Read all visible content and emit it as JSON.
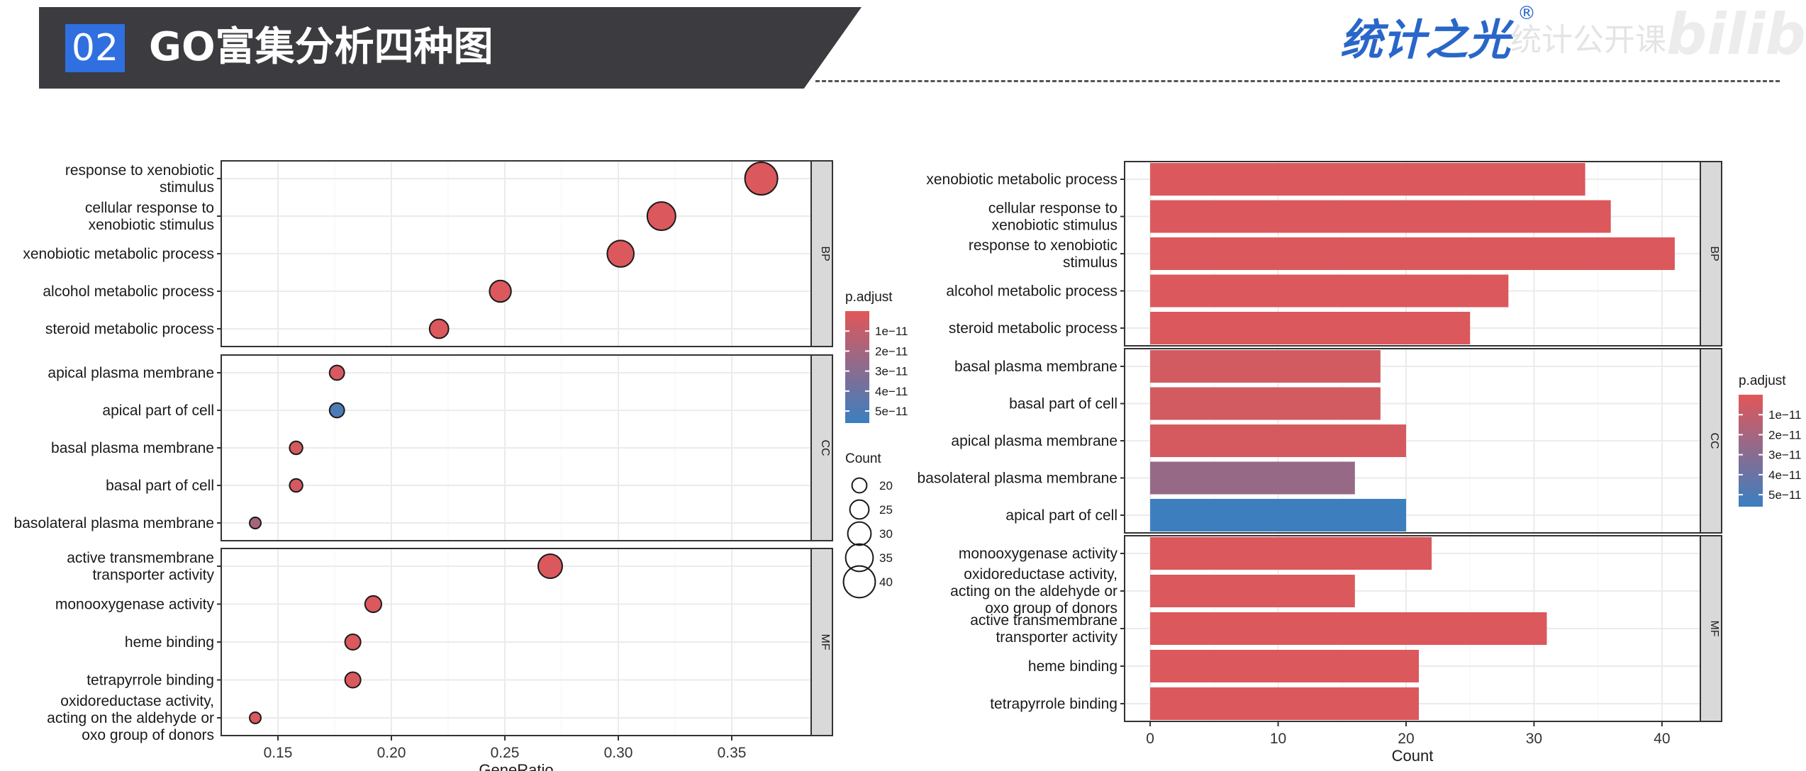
{
  "header": {
    "number": "02",
    "title": "GO富集分析四种图"
  },
  "brand": {
    "logo_text": "统计之光",
    "registered_mark": "®",
    "watermark_text": "统计公开课",
    "watermark_logo": "bilibili"
  },
  "colors": {
    "high": "#e15759",
    "low": "#3a7fc1",
    "header_bg": "#3b3b40",
    "header_num_bg": "#2f6fe0",
    "brand": "#2a66c9"
  },
  "chart_data": [
    {
      "type": "scatter",
      "title": "",
      "xlabel": "GeneRatio",
      "ylabel": "",
      "xlim": [
        0.125,
        0.385
      ],
      "xticks": [
        0.15,
        0.2,
        0.25,
        0.3,
        0.35
      ],
      "xtick_labels": [
        "0.15",
        "0.20",
        "0.25",
        "0.30",
        "0.35"
      ],
      "grid": true,
      "facets": [
        {
          "name": "BP",
          "terms": [
            {
              "lines": [
                "response to xenobiotic",
                "stimulus"
              ],
              "x": 0.363,
              "count": 41,
              "p": 0.2
            },
            {
              "lines": [
                "cellular response to",
                "xenobiotic stimulus"
              ],
              "x": 0.319,
              "count": 36,
              "p": 0.2
            },
            {
              "lines": [
                "xenobiotic metabolic process"
              ],
              "x": 0.301,
              "count": 34,
              "p": 0.2
            },
            {
              "lines": [
                "alcohol metabolic process"
              ],
              "x": 0.248,
              "count": 28,
              "p": 0.2
            },
            {
              "lines": [
                "steroid metabolic process"
              ],
              "x": 0.221,
              "count": 25,
              "p": 0.2
            }
          ]
        },
        {
          "name": "CC",
          "terms": [
            {
              "lines": [
                "apical plasma membrane"
              ],
              "x": 0.176,
              "count": 20,
              "p": 0.3
            },
            {
              "lines": [
                "apical part of cell"
              ],
              "x": 0.176,
              "count": 20,
              "p": 5
            },
            {
              "lines": [
                "basal plasma membrane"
              ],
              "x": 0.158,
              "count": 18,
              "p": 0.4
            },
            {
              "lines": [
                "basal part of cell"
              ],
              "x": 0.158,
              "count": 18,
              "p": 0.4
            },
            {
              "lines": [
                "basolateral plasma membrane"
              ],
              "x": 0.14,
              "count": 16,
              "p": 2
            }
          ]
        },
        {
          "name": "MF",
          "terms": [
            {
              "lines": [
                "active transmembrane",
                "transporter activity"
              ],
              "x": 0.27,
              "count": 31,
              "p": 0.2
            },
            {
              "lines": [
                "monooxygenase activity"
              ],
              "x": 0.192,
              "count": 22,
              "p": 0.2
            },
            {
              "lines": [
                "heme binding"
              ],
              "x": 0.183,
              "count": 21,
              "p": 0.2
            },
            {
              "lines": [
                "tetrapyrrole binding"
              ],
              "x": 0.183,
              "count": 21,
              "p": 0.2
            },
            {
              "lines": [
                "oxidoreductase activity,",
                "acting on the aldehyde or",
                "oxo group of donors"
              ],
              "x": 0.14,
              "count": 16,
              "p": 0.3
            }
          ]
        }
      ],
      "legend_color": {
        "title": "p.adjust",
        "min": 0,
        "max": 5.6,
        "ticks": [
          1,
          2,
          3,
          4,
          5
        ],
        "labels": [
          "1e−11",
          "2e−11",
          "3e−11",
          "4e−11",
          "5e−11"
        ]
      },
      "legend_size": {
        "title": "Count",
        "values": [
          20,
          25,
          30,
          35,
          40
        ],
        "labels": [
          "20",
          "25",
          "30",
          "35",
          "40"
        ]
      },
      "legend_placement": "right"
    },
    {
      "type": "bar",
      "orientation": "horizontal",
      "title": "",
      "xlabel": "Count",
      "ylabel": "",
      "xlim": [
        -2,
        43
      ],
      "xticks": [
        0,
        10,
        20,
        30,
        40
      ],
      "xtick_labels": [
        "0",
        "10",
        "20",
        "30",
        "40"
      ],
      "grid": true,
      "facets": [
        {
          "name": "BP",
          "terms": [
            {
              "lines": [
                "xenobiotic metabolic process"
              ],
              "value": 34,
              "p": 0.2
            },
            {
              "lines": [
                "cellular response to",
                "xenobiotic stimulus"
              ],
              "value": 36,
              "p": 0.2
            },
            {
              "lines": [
                "response to xenobiotic",
                "stimulus"
              ],
              "value": 41,
              "p": 0.2
            },
            {
              "lines": [
                "alcohol metabolic process"
              ],
              "value": 28,
              "p": 0.2
            },
            {
              "lines": [
                "steroid metabolic process"
              ],
              "value": 25,
              "p": 0.2
            }
          ]
        },
        {
          "name": "CC",
          "terms": [
            {
              "lines": [
                "basal plasma membrane"
              ],
              "value": 18,
              "p": 0.5
            },
            {
              "lines": [
                "basal part of cell"
              ],
              "value": 18,
              "p": 0.5
            },
            {
              "lines": [
                "apical plasma membrane"
              ],
              "value": 20,
              "p": 0.4
            },
            {
              "lines": [
                "basolateral plasma membrane"
              ],
              "value": 16,
              "p": 2.5
            },
            {
              "lines": [
                "apical part of cell"
              ],
              "value": 20,
              "p": 5.5
            }
          ]
        },
        {
          "name": "MF",
          "terms": [
            {
              "lines": [
                "monooxygenase activity"
              ],
              "value": 22,
              "p": 0.2
            },
            {
              "lines": [
                "oxidoreductase activity,",
                "acting on the aldehyde or",
                "oxo group of donors"
              ],
              "value": 16,
              "p": 0.2
            },
            {
              "lines": [
                "active transmembrane",
                "transporter activity"
              ],
              "value": 31,
              "p": 0.2
            },
            {
              "lines": [
                "heme binding"
              ],
              "value": 21,
              "p": 0.2
            },
            {
              "lines": [
                "tetrapyrrole binding"
              ],
              "value": 21,
              "p": 0.2
            }
          ]
        }
      ],
      "legend_color": {
        "title": "p.adjust",
        "min": 0,
        "max": 5.6,
        "ticks": [
          1,
          2,
          3,
          4,
          5
        ],
        "labels": [
          "1e−11",
          "2e−11",
          "3e−11",
          "4e−11",
          "5e−11"
        ]
      },
      "legend_placement": "right"
    }
  ]
}
